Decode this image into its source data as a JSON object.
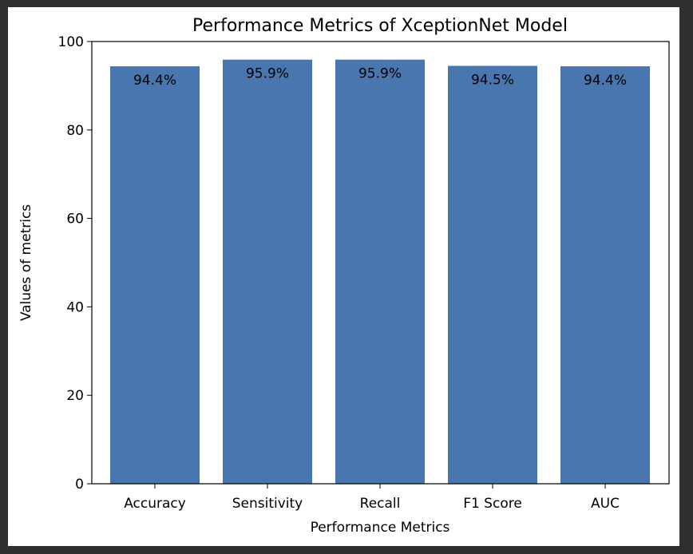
{
  "chart_data": {
    "type": "bar",
    "title": "Performance Metrics of XceptionNet Model",
    "xlabel": "Performance Metrics",
    "ylabel": "Values of metrics",
    "categories": [
      "Accuracy",
      "Sensitivity",
      "Recall",
      "F1 Score",
      "AUC"
    ],
    "values": [
      94.4,
      95.9,
      95.9,
      94.5,
      94.4
    ],
    "data_labels": [
      "94.4%",
      "95.9%",
      "95.9%",
      "94.5%",
      "94.4%"
    ],
    "ylim": [
      0,
      100
    ],
    "yticks": [
      0,
      20,
      40,
      60,
      80,
      100
    ],
    "grid": false,
    "legend": "none",
    "bar_color": "#4a76b0"
  }
}
